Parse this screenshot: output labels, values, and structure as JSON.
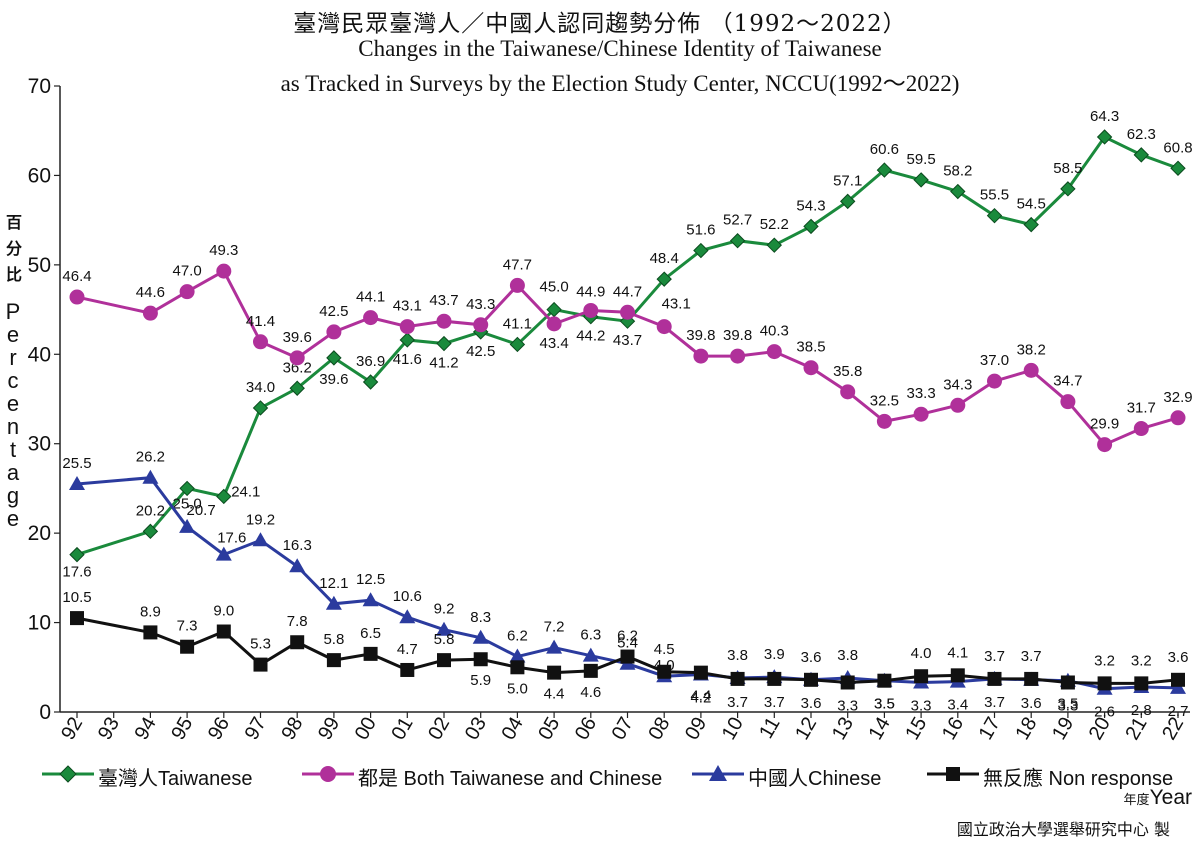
{
  "header": {
    "title_zh": "臺灣民眾臺灣人／中國人認同趨勢分佈 （1992～2022）",
    "title_en_1": "Changes in the Taiwanese/Chinese Identity of Taiwanese",
    "title_en_2": "as Tracked in Surveys by the Election Study Center, NCCU(1992～2022)"
  },
  "ylabel_zh": "百分比",
  "ylabel_en": "Percentage",
  "xlabel_zh": "年度",
  "xlabel_en": "Year",
  "credit": "國立政治大學選舉研究中心 製",
  "legend": [
    {
      "zh": "臺灣人",
      "en": "Taiwanese"
    },
    {
      "zh": "都是",
      "en": " Both Taiwanese and Chinese"
    },
    {
      "zh": "中國人",
      "en": "Chinese"
    },
    {
      "zh": "無反應",
      "en": " Non response"
    }
  ],
  "chart_data": {
    "type": "line",
    "x": [
      "92",
      "93",
      "94",
      "95",
      "96",
      "97",
      "98",
      "99",
      "00",
      "01",
      "02",
      "03",
      "04",
      "05",
      "06",
      "07",
      "08",
      "09",
      "10",
      "11",
      "12",
      "13",
      "14",
      "15",
      "16",
      "17",
      "18",
      "19",
      "20",
      "21",
      "22"
    ],
    "ylim": [
      0,
      70
    ],
    "yticks": [
      0,
      10,
      20,
      30,
      40,
      50,
      60,
      70
    ],
    "legend_position": "bottom",
    "series": [
      {
        "name": "臺灣人Taiwanese",
        "color": "#1a8a3c",
        "marker": "diamond",
        "values": [
          17.6,
          null,
          20.2,
          25.0,
          24.1,
          34.0,
          36.2,
          39.6,
          36.9,
          41.6,
          41.2,
          42.5,
          41.1,
          45.0,
          44.2,
          43.7,
          48.4,
          51.6,
          52.7,
          52.2,
          54.3,
          57.1,
          60.6,
          59.5,
          58.2,
          55.5,
          54.5,
          58.5,
          64.3,
          62.3,
          60.8
        ]
      },
      {
        "name": "都是 Both Taiwanese and Chinese",
        "color": "#b0309a",
        "marker": "circle",
        "values": [
          46.4,
          null,
          44.6,
          47.0,
          49.3,
          41.4,
          39.6,
          42.5,
          44.1,
          43.1,
          43.7,
          43.3,
          47.7,
          43.4,
          44.9,
          44.7,
          43.1,
          39.8,
          39.8,
          40.3,
          38.5,
          35.8,
          32.5,
          33.3,
          34.3,
          37.0,
          38.2,
          34.7,
          29.9,
          31.7,
          32.9
        ]
      },
      {
        "name": "中國人Chinese",
        "color": "#2b3b9e",
        "marker": "triangle",
        "values": [
          25.5,
          null,
          26.2,
          20.7,
          17.6,
          19.2,
          16.3,
          12.1,
          12.5,
          10.6,
          9.2,
          8.3,
          6.2,
          7.2,
          6.3,
          5.4,
          4.0,
          4.2,
          3.8,
          3.9,
          3.6,
          3.8,
          3.5,
          3.3,
          3.4,
          3.7,
          3.6,
          3.5,
          2.6,
          2.8,
          2.7
        ]
      },
      {
        "name": "無反應 Non response",
        "color": "#111111",
        "marker": "square",
        "values": [
          10.5,
          null,
          8.9,
          7.3,
          9.0,
          5.3,
          7.8,
          5.8,
          6.5,
          4.7,
          5.8,
          5.9,
          5.0,
          4.4,
          4.6,
          6.2,
          4.5,
          4.4,
          3.7,
          3.7,
          3.6,
          3.3,
          3.5,
          4.0,
          4.1,
          3.7,
          3.7,
          3.3,
          3.2,
          3.2,
          3.6
        ]
      }
    ]
  }
}
